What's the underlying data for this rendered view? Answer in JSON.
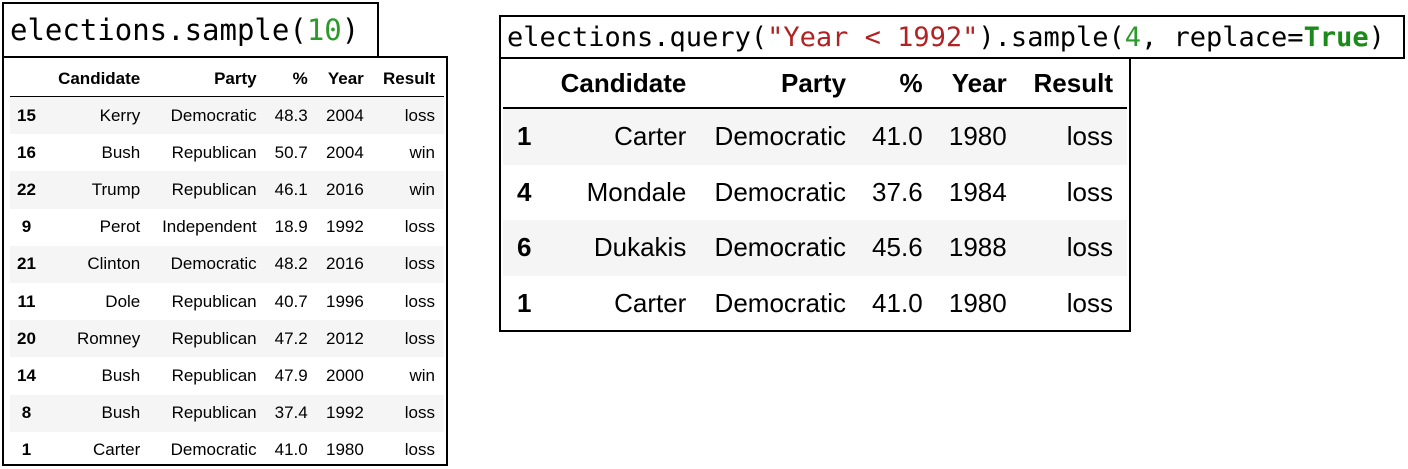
{
  "left_panel": {
    "code": {
      "prefix": "elections.sample(",
      "arg": "10",
      "suffix": ")"
    },
    "columns": [
      "",
      "Candidate",
      "Party",
      "%",
      "Year",
      "Result"
    ],
    "rows": [
      [
        "15",
        "Kerry",
        "Democratic",
        "48.3",
        "2004",
        "loss"
      ],
      [
        "16",
        "Bush",
        "Republican",
        "50.7",
        "2004",
        "win"
      ],
      [
        "22",
        "Trump",
        "Republican",
        "46.1",
        "2016",
        "win"
      ],
      [
        "9",
        "Perot",
        "Independent",
        "18.9",
        "1992",
        "loss"
      ],
      [
        "21",
        "Clinton",
        "Democratic",
        "48.2",
        "2016",
        "loss"
      ],
      [
        "11",
        "Dole",
        "Republican",
        "40.7",
        "1996",
        "loss"
      ],
      [
        "20",
        "Romney",
        "Republican",
        "47.2",
        "2012",
        "loss"
      ],
      [
        "14",
        "Bush",
        "Republican",
        "47.9",
        "2000",
        "win"
      ],
      [
        "8",
        "Bush",
        "Republican",
        "37.4",
        "1992",
        "loss"
      ],
      [
        "1",
        "Carter",
        "Democratic",
        "41.0",
        "1980",
        "loss"
      ]
    ]
  },
  "right_panel": {
    "code": {
      "prefix": "elections.query(",
      "str": "\"Year < 1992\"",
      "mid": ").sample(",
      "num": "4",
      "mid2": ", replace=",
      "kw": "True",
      "suffix": ")"
    },
    "columns": [
      "",
      "Candidate",
      "Party",
      "%",
      "Year",
      "Result"
    ],
    "rows": [
      [
        "1",
        "Carter",
        "Democratic",
        "41.0",
        "1980",
        "loss"
      ],
      [
        "4",
        "Mondale",
        "Democratic",
        "37.6",
        "1984",
        "loss"
      ],
      [
        "6",
        "Dukakis",
        "Democratic",
        "45.6",
        "1988",
        "loss"
      ],
      [
        "1",
        "Carter",
        "Democratic",
        "41.0",
        "1980",
        "loss"
      ]
    ]
  },
  "colors": {
    "number": "#2b9a2b",
    "string": "#b22222",
    "keyword": "#1a8a1a",
    "row_stripe": "#f5f5f5"
  }
}
